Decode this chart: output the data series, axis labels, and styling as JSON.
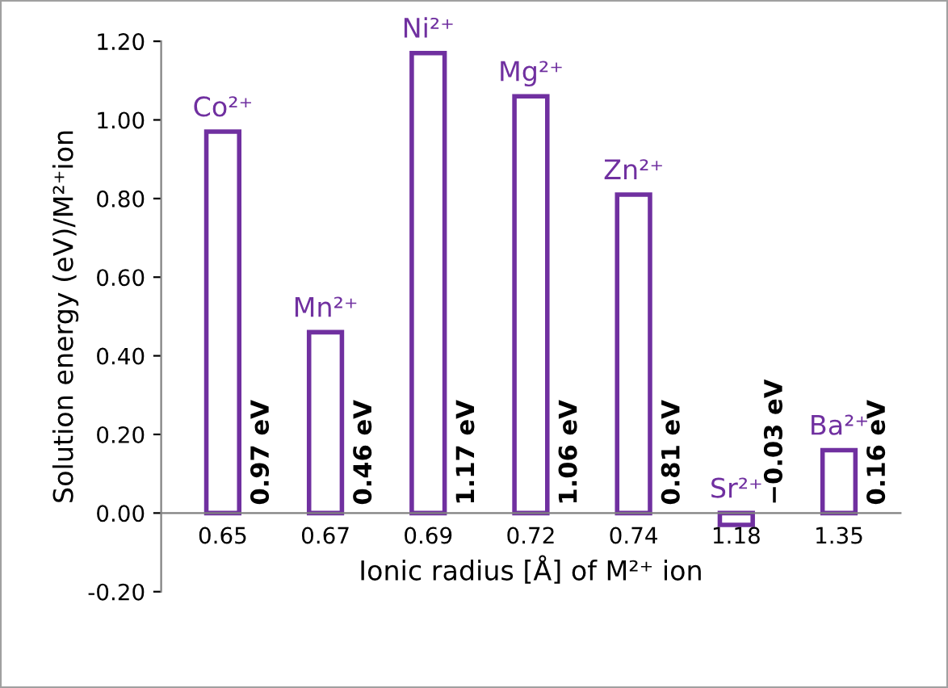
{
  "chart_data": {
    "type": "bar",
    "xlabel": "Ionic radius [Å] of M²⁺ ion",
    "ylabel": "Solution energy (eV)/M²⁺ion",
    "categories": [
      "0.65",
      "0.67",
      "0.69",
      "0.72",
      "0.74",
      "1.18",
      "1.35"
    ],
    "values": [
      0.97,
      0.46,
      1.17,
      1.06,
      0.81,
      -0.03,
      0.16
    ],
    "value_labels": [
      "0.97 eV",
      "0.46 eV",
      "1.17 eV",
      "1.06 eV",
      "0.81 eV",
      "−0.03 eV",
      "0.16 eV"
    ],
    "color": "#7030a0",
    "ylim": [
      -0.2,
      1.2
    ],
    "yticks": [
      {
        "value": -0.2,
        "label": "-0.20"
      },
      {
        "value": 0,
        "label": "0.00"
      },
      {
        "value": 0.2,
        "label": "0.20"
      },
      {
        "value": 0.4,
        "label": "0.40"
      },
      {
        "value": 0.6,
        "label": "0.60"
      },
      {
        "value": 0.8,
        "label": "0.80"
      },
      {
        "value": 1.0,
        "label": "1.00"
      },
      {
        "value": 1.2,
        "label": "1.20"
      }
    ],
    "annotations": [
      {
        "text": "Co²⁺",
        "x": "0.65",
        "y": 0.97
      },
      {
        "text": "Mn²⁺",
        "x": "0.67",
        "y": 0.46
      },
      {
        "text": "Ni²⁺",
        "x": "0.69",
        "y": 1.17
      },
      {
        "text": "Mg²⁺",
        "x": "0.72",
        "y": 1.06
      },
      {
        "text": "Zn²⁺",
        "x": "0.74",
        "y": 0.81
      },
      {
        "text": "Sr²⁺",
        "x": "1.18",
        "y": -0.03
      },
      {
        "text": "Ba²⁺",
        "x": "1.35",
        "y": 0.16
      }
    ],
    "grid": false,
    "legend": false
  }
}
